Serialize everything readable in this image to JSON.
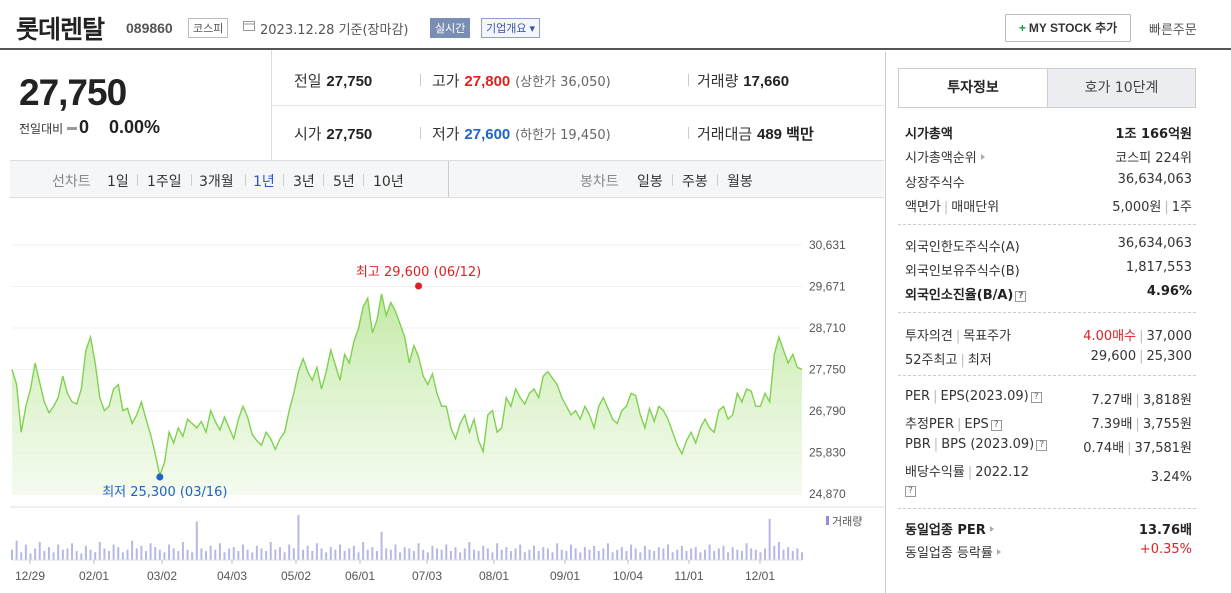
{
  "header": {
    "stock_name": "롯데렌탈",
    "code": "089860",
    "market": "코스피",
    "date": "2023.12.28  기준(장마감)",
    "realtime": "실시간",
    "company_info": "기업개요",
    "my_stock": "MY STOCK 추가",
    "quick_order": "빠른주문"
  },
  "quote": {
    "price": "27,750",
    "change_label": "전일대비",
    "change": "0",
    "change_pct": "0.00%",
    "prev_label": "전일",
    "prev": "27,750",
    "high_label": "고가",
    "high": "27,800",
    "upper_limit": "(상한가 36,050)",
    "volume_label": "거래량",
    "volume": "17,660",
    "open_label": "시가",
    "open": "27,750",
    "low_label": "저가",
    "low": "27,600",
    "lower_limit": "(하한가 19,450)",
    "amount_label": "거래대금",
    "amount": "489 백만"
  },
  "tabs": {
    "line_label": "선차트",
    "periods": [
      "1일",
      "1주일",
      "3개월",
      "1년",
      "3년",
      "5년",
      "10년"
    ],
    "active_period": "1년",
    "candle_label": "봉차트",
    "candles": [
      "일봉",
      "주봉",
      "월봉"
    ]
  },
  "chart_data": {
    "type": "area",
    "color": "#7fd14f",
    "x_tick_labels": [
      "12/29",
      "02/01",
      "03/02",
      "04/03",
      "05/02",
      "06/01",
      "07/03",
      "08/01",
      "09/01",
      "10/04",
      "11/01",
      "12/01"
    ],
    "y_tick_labels": [
      "30,631",
      "29,671",
      "28,710",
      "27,750",
      "26,790",
      "25,830",
      "24,870"
    ],
    "ylim": [
      24870,
      30631
    ],
    "annotations": {
      "high": "최고 29,600 (06/12)",
      "low": "최저 25,300 (03/16)"
    },
    "volume_label": "거래량",
    "values": [
      27750,
      27400,
      26300,
      26900,
      27300,
      27900,
      27450,
      27000,
      26750,
      26900,
      27100,
      27600,
      27200,
      27000,
      26950,
      27300,
      28200,
      28500,
      27900,
      27100,
      26800,
      26900,
      27300,
      27400,
      26800,
      26850,
      26500,
      26700,
      27000,
      26600,
      26250,
      25800,
      25300,
      25600,
      26300,
      26050,
      26400,
      26200,
      26600,
      26500,
      26400,
      26550,
      26300,
      26800,
      26550,
      26350,
      26650,
      26400,
      26150,
      26600,
      26900,
      26650,
      26250,
      26100,
      26000,
      26300,
      26150,
      25900,
      26150,
      26300,
      26800,
      27200,
      27700,
      28000,
      27700,
      27500,
      27800,
      27300,
      27700,
      28200,
      27850,
      27500,
      28100,
      27900,
      28400,
      28700,
      29200,
      29400,
      28600,
      28900,
      29500,
      29000,
      29300,
      29100,
      28800,
      28500,
      27900,
      28300,
      28050,
      27600,
      27400,
      27650,
      27200,
      26900,
      26900,
      26400,
      26150,
      26500,
      26700,
      26300,
      26600,
      26100,
      25850,
      26700,
      26800,
      26300,
      26400,
      27100,
      26900,
      27300,
      27100,
      26950,
      27200,
      27300,
      27100,
      27600,
      27700,
      27550,
      27400,
      27100,
      26900,
      26700,
      26800,
      26600,
      26900,
      26700,
      26400,
      26900,
      27100,
      26850,
      26600,
      26500,
      26800,
      26900,
      27200,
      27150,
      26700,
      26400,
      26850,
      26550,
      26900,
      26800,
      26600,
      26300,
      26000,
      25800,
      26100,
      26300,
      26050,
      26400,
      26600,
      26400,
      26300,
      26800,
      26900,
      26600,
      26700,
      27200,
      27000,
      27300,
      27250,
      26900,
      26900,
      27200,
      27000,
      28100,
      28500,
      28200,
      27900,
      28100,
      27800,
      27750
    ],
    "volumes": [
      8,
      15,
      6,
      12,
      5,
      9,
      14,
      7,
      10,
      6,
      12,
      8,
      9,
      13,
      7,
      5,
      11,
      8,
      6,
      14,
      9,
      7,
      12,
      10,
      6,
      8,
      15,
      9,
      11,
      7,
      13,
      10,
      8,
      6,
      12,
      9,
      7,
      14,
      8,
      6,
      30,
      9,
      7,
      11,
      8,
      13,
      6,
      9,
      10,
      7,
      12,
      8,
      6,
      11,
      9,
      7,
      14,
      8,
      10,
      6,
      12,
      9,
      35,
      8,
      11,
      7,
      13,
      9,
      6,
      10,
      8,
      12,
      7,
      9,
      11,
      6,
      14,
      8,
      10,
      7,
      22,
      9,
      8,
      12,
      6,
      10,
      9,
      7,
      13,
      8,
      6,
      11,
      9,
      8,
      12,
      7,
      10,
      6,
      9,
      14,
      8,
      7,
      11,
      9,
      6,
      13,
      8,
      10,
      7,
      9,
      12,
      6,
      8,
      11,
      7,
      10,
      9,
      6,
      13,
      8,
      7,
      12,
      9,
      6,
      10,
      8,
      11,
      7,
      9,
      13,
      6,
      8,
      10,
      7,
      12,
      9,
      6,
      11,
      8,
      7,
      10,
      9,
      12,
      6,
      8,
      11,
      7,
      9,
      10,
      6,
      8,
      12,
      7,
      9,
      11,
      6,
      10,
      8,
      7,
      13,
      9,
      8,
      6,
      9,
      32,
      11,
      14,
      8,
      10,
      7,
      9,
      6
    ]
  },
  "right_panel": {
    "tab_active": "투자정보",
    "tab_other": "호가 10단계",
    "market_cap_label": "시가총액",
    "market_cap": "1조 166억원",
    "cap_rank_label": "시가총액순위",
    "cap_rank": "코스피 224위",
    "shares_label": "상장주식수",
    "shares": "36,634,063",
    "par_label": "액면가",
    "unit_label": "매매단위",
    "par": "5,000원",
    "unit": "1주",
    "foreign_limit_label": "외국인한도주식수(A)",
    "foreign_limit": "36,634,063",
    "foreign_hold_label": "외국인보유주식수(B)",
    "foreign_hold": "1,817,553",
    "foreign_ratio_label": "외국인소진율(B/A)",
    "foreign_ratio": "4.96%",
    "opinion_label": "투자의견",
    "target_label": "목표주가",
    "opinion": "4.00매수",
    "target": "37,000",
    "w52_label": "52주최고",
    "w52_low_label": "최저",
    "w52_high": "29,600",
    "w52_low": "25,300",
    "per_label": "PER",
    "eps_label": "EPS(2023.09)",
    "per": "7.27배",
    "eps": "3,818원",
    "eper_label": "추정PER",
    "eeps_label": "EPS",
    "eper": "7.39배",
    "eeps": "3,755원",
    "pbr_label": "PBR",
    "bps_label": "BPS (2023.09)",
    "pbr": "0.74배",
    "bps": "37,581원",
    "div_label": "배당수익률",
    "div_year": "2022.12",
    "div": "3.24%",
    "ind_per_label": "동일업종 PER",
    "ind_per": "13.76배",
    "ind_rate_label": "동일업종 등락률",
    "ind_rate": "+0.35%"
  }
}
